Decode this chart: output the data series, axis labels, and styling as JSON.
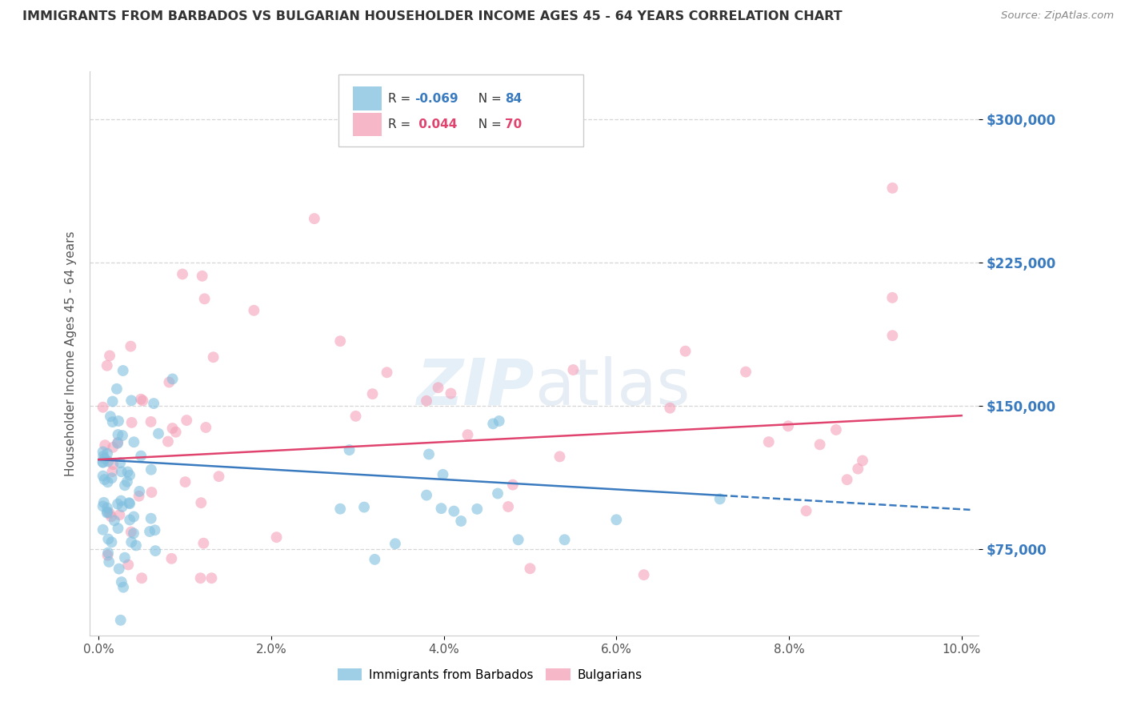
{
  "title": "IMMIGRANTS FROM BARBADOS VS BULGARIAN HOUSEHOLDER INCOME AGES 45 - 64 YEARS CORRELATION CHART",
  "source": "Source: ZipAtlas.com",
  "ylabel": "Householder Income Ages 45 - 64 years",
  "xlabel_ticks": [
    "0.0%",
    "2.0%",
    "4.0%",
    "6.0%",
    "8.0%",
    "10.0%"
  ],
  "xlabel_vals": [
    0.0,
    0.02,
    0.04,
    0.06,
    0.08,
    0.1
  ],
  "ytick_labels": [
    "$75,000",
    "$150,000",
    "$225,000",
    "$300,000"
  ],
  "ytick_vals": [
    75000,
    150000,
    225000,
    300000
  ],
  "ylim": [
    30000,
    325000
  ],
  "xlim": [
    -0.001,
    0.102
  ],
  "watermark": "ZIPatlas",
  "barbados_color": "#7fbfdf",
  "bulgarians_color": "#f4a0b8",
  "regression_barbados_color": "#3a7abf",
  "regression_bulgarians_color": "#e0436e",
  "background_color": "#ffffff",
  "grid_color": "#cccccc",
  "title_color": "#333333",
  "axis_label_color": "#555555",
  "ytick_label_color": "#3a7abf",
  "source_color": "#888888",
  "legend_R1": "-0.069",
  "legend_N1": "84",
  "legend_R2": "0.044",
  "legend_N2": "70"
}
